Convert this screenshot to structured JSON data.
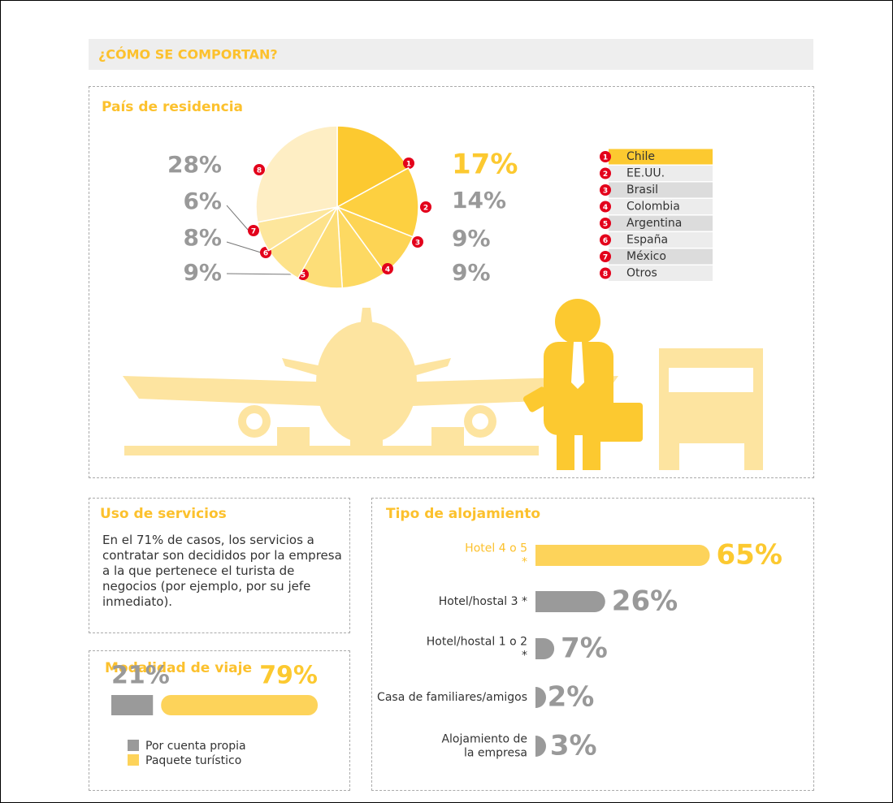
{
  "title": "¿CÓMO SE COMPORTAN?",
  "services": {
    "title": "Uso de servicios",
    "text": "En el 71% de casos, los servicios a contratar son decididos por la empresa a la que pertenece el turista de negocios (por ejemplo, por su jefe inmediato)."
  },
  "chart_data": [
    {
      "type": "pie",
      "title": "País de residencia",
      "categories": [
        "Chile",
        "EE.UU.",
        "Brasil",
        "Colombia",
        "Argentina",
        "España",
        "México",
        "Otros"
      ],
      "markers": [
        "1",
        "2",
        "3",
        "4",
        "5",
        "6",
        "7",
        "8"
      ],
      "values": [
        17,
        14,
        9,
        9,
        9,
        8,
        6,
        28
      ],
      "value_labels": [
        "17%",
        "14%",
        "9%",
        "9%",
        "9%",
        "8%",
        "6%",
        "28%"
      ],
      "colors": [
        "#fcc930",
        "#fdd040",
        "#fdd454",
        "#fdd962",
        "#fdde78",
        "#fde28a",
        "#fde69c",
        "#feeec4"
      ]
    },
    {
      "type": "bar",
      "orientation": "horizontal",
      "title": "Tipo de alojamiento",
      "categories": [
        "Hotel 4 o 5 *",
        "Hotel/hostal 3 *",
        "Hotel/hostal 1 o 2 *",
        "Casa de familiares/amigos",
        "Alojamiento de la empresa"
      ],
      "values": [
        65,
        26,
        7,
        2,
        3
      ],
      "value_labels": [
        "65%",
        "26%",
        "7%",
        "2%",
        "3%"
      ],
      "colors": [
        "#fdd35a",
        "#9a9a9a",
        "#9a9a9a",
        "#9a9a9a",
        "#9a9a9a"
      ]
    },
    {
      "type": "stacked_bar",
      "title": "Modalidad de viaje",
      "series": [
        {
          "name": "Por cuenta propia",
          "color": "#9a9a9a",
          "values": [
            21
          ],
          "value_labels": [
            "21%"
          ]
        },
        {
          "name": "Paquete turístico",
          "color": "#fdd35a",
          "values": [
            79
          ],
          "value_labels": [
            "79%"
          ]
        }
      ]
    }
  ]
}
